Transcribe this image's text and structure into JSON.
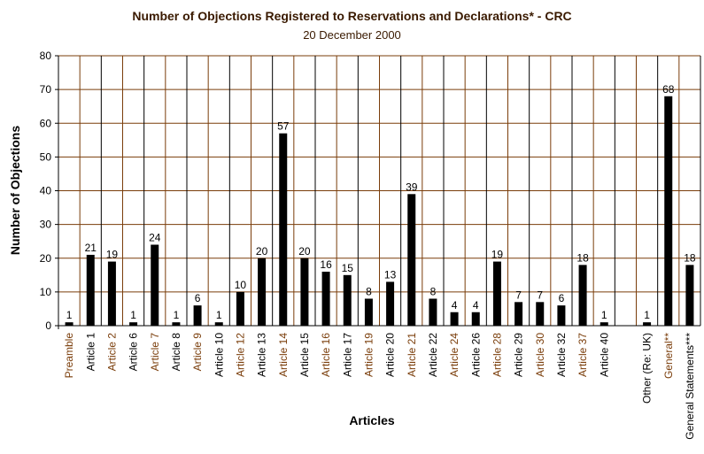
{
  "chart_data": {
    "type": "bar",
    "title": "Number of Objections Registered to Reservations and Declarations* - CRC",
    "subtitle": "20 December 2000",
    "xlabel": "Articles",
    "ylabel": "Number of Objections",
    "ylim": [
      0,
      80
    ],
    "yticks": [
      0,
      10,
      20,
      30,
      40,
      50,
      60,
      70,
      80
    ],
    "grid": true,
    "categories": [
      "Preamble",
      "Article 1",
      "Article 2",
      "Article 6",
      "Article 7",
      "Article 8",
      "Article 9",
      "Article 10",
      "Article 12",
      "Article 13",
      "Article 14",
      "Article 15",
      "Article 16",
      "Article 17",
      "Article 19",
      "Article 20",
      "Article 21",
      "Article 22",
      "Article 24",
      "Article 26",
      "Article 28",
      "Article 29",
      "Article 30",
      "Article 32",
      "Article 37",
      "Article 40",
      "",
      "Other (Re: UK)",
      "General**",
      "General Statements***"
    ],
    "values": [
      1,
      21,
      19,
      1,
      24,
      1,
      6,
      1,
      10,
      20,
      57,
      20,
      16,
      15,
      8,
      13,
      39,
      8,
      4,
      4,
      19,
      7,
      7,
      6,
      18,
      1,
      null,
      1,
      68,
      18
    ],
    "colors": {
      "bar": "#000000",
      "grid_horizontal": "#7a3d0a",
      "grid_vertical_even": "#000000",
      "grid_vertical_odd": "#7a3d0a",
      "label_even": "#000000",
      "label_odd": "#7a3d0a",
      "title": "#3a1a00"
    }
  }
}
